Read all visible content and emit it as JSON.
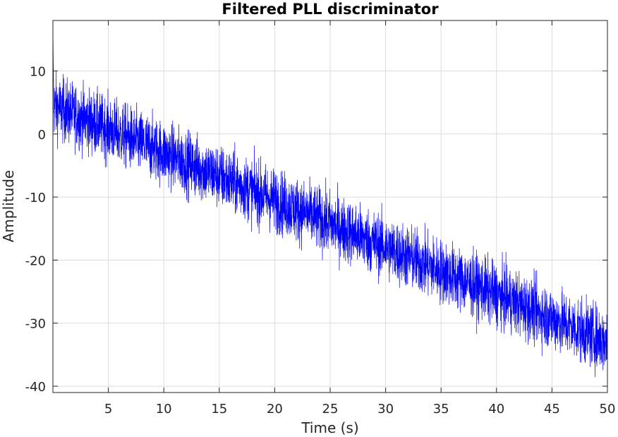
{
  "chart_data": {
    "type": "line",
    "title": "Filtered PLL discriminator",
    "xlabel": "Time (s)",
    "ylabel": "Amplitude",
    "xlim": [
      0,
      50
    ],
    "ylim": [
      -41,
      18
    ],
    "xticks": [
      5,
      10,
      15,
      20,
      25,
      30,
      35,
      40,
      45,
      50
    ],
    "yticks": [
      10,
      0,
      -10,
      -20,
      -30,
      -40
    ],
    "grid": true,
    "legend": "none",
    "series": [
      {
        "color": "#0000ff",
        "trend_start": 4.5,
        "trend_end": -33,
        "noise_halfwidth": 6.5,
        "samples_per_second": 80,
        "x_start": 0,
        "x_end": 50
      }
    ]
  }
}
